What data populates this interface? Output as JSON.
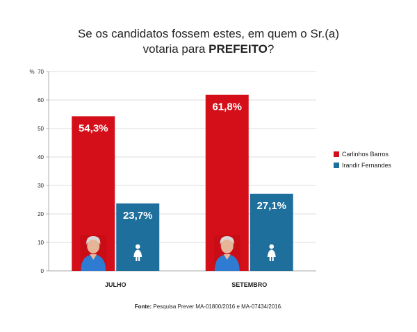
{
  "title": {
    "line1": "Se os candidatos fossem estes, em quem o Sr.(a)",
    "line2_prefix": "votaria para ",
    "line2_bold": "PREFEITO",
    "line2_suffix": "?"
  },
  "source": {
    "label": "Fonte:",
    "text": " Pesquisa Prever MA-01800/2016 e MA-07434/2016."
  },
  "colors": {
    "carlinhos": "#d40f1a",
    "irandir": "#1f6f9c",
    "grid": "#d0d0d0",
    "axis": "#999999"
  },
  "chart_data": {
    "type": "bar",
    "ylabel": "%",
    "ylim": [
      0,
      70
    ],
    "yticks": [
      0,
      10,
      20,
      30,
      40,
      50,
      60,
      70
    ],
    "grid": true,
    "legend_position": "right",
    "categories": [
      "JULHO",
      "SETEMBRO"
    ],
    "series": [
      {
        "name": "Carlinhos Barros",
        "values": [
          54.3,
          61.8
        ],
        "labels": [
          "54,3%",
          "61,8%"
        ],
        "icon": "candidate-photo"
      },
      {
        "name": "Irandir Fernandes",
        "values": [
          23.7,
          27.1
        ],
        "labels": [
          "23,7%",
          "27,1%"
        ],
        "icon": "person-silhouette-icon"
      }
    ]
  }
}
